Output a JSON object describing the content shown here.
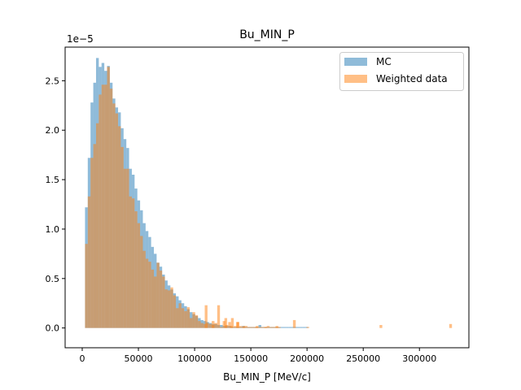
{
  "chart_data": {
    "type": "bar",
    "title": "Bu_MIN_P",
    "xlabel": "Bu_MIN_P [MeV/c]",
    "ylabel": "",
    "offset_label": "1e−5",
    "xlim": [
      -15200,
      344000
    ],
    "ylim": [
      -2e-06,
      2.84e-05
    ],
    "x_ticks": [
      0,
      50000,
      100000,
      150000,
      200000,
      250000,
      300000
    ],
    "x_tick_labels": [
      "0",
      "50000",
      "100000",
      "150000",
      "200000",
      "250000",
      "300000"
    ],
    "y_ticks": [
      0.0,
      5e-06,
      1e-05,
      1.5e-05,
      2e-05,
      2.5e-05
    ],
    "y_tick_labels": [
      "0.0",
      "0.5",
      "1.0",
      "1.5",
      "2.0",
      "2.5"
    ],
    "bin_start": 2500,
    "bin_width": 2450,
    "legend_position": "top-right",
    "grid": false,
    "series": [
      {
        "name": "MC",
        "color": "#1f77b4",
        "alpha": 0.5,
        "values": [
          1.22e-05,
          1.72e-05,
          2.28e-05,
          2.48e-05,
          2.73e-05,
          2.64e-05,
          2.68e-05,
          2.6e-05,
          2.65e-05,
          2.48e-05,
          2.32e-05,
          2.23e-05,
          2.18e-05,
          2.02e-05,
          1.91e-05,
          1.82e-05,
          1.61e-05,
          1.55e-05,
          1.41e-05,
          1.29e-05,
          1.19e-05,
          1.06e-05,
          9.8e-06,
          9.2e-06,
          8.2e-06,
          7.5e-06,
          6.6e-06,
          6.2e-06,
          5.4e-06,
          4.8e-06,
          4.3e-06,
          3.9e-06,
          3.5e-06,
          3.2e-06,
          2.8e-06,
          2.5e-06,
          2.2e-06,
          1.9e-06,
          1.6e-06,
          1.4e-06,
          1.2e-06,
          1e-06,
          8e-07,
          7e-07,
          6e-07,
          5e-07,
          4e-07,
          4e-07,
          3e-07,
          3e-07,
          2e-07,
          2e-07,
          2e-07,
          1e-07,
          1e-07,
          1e-07,
          1e-07,
          2e-07,
          1e-07,
          1e-07,
          1e-07,
          1e-07,
          1e-07,
          3e-07,
          1e-07,
          1e-07,
          1e-07,
          1e-07,
          1e-07,
          1e-07,
          1e-07,
          1e-07,
          1e-07,
          1e-07,
          1e-07,
          1e-07,
          1e-07,
          1e-07,
          1e-07,
          1e-07,
          1e-07
        ],
        "values_x": []
      },
      {
        "name": "Weighted data",
        "color": "#ff7f0e",
        "alpha": 0.5,
        "values": [
          8.5e-06,
          1.33e-05,
          1.72e-05,
          1.86e-05,
          2.07e-05,
          2.36e-05,
          2.46e-05,
          2.46e-05,
          2.64e-05,
          2.42e-05,
          2.27e-05,
          2.17e-05,
          2.04e-05,
          1.83e-05,
          1.61e-05,
          1.61e-05,
          1.33e-05,
          1.31e-05,
          1.18e-05,
          1.06e-05,
          9.3e-06,
          7.8e-06,
          7e-06,
          6.7e-06,
          5.9e-06,
          5.2e-06,
          6.6e-06,
          5.8e-06,
          5.2e-06,
          3.9e-06,
          3.8e-06,
          4.1e-06,
          3.3e-06,
          2e-06,
          2.5e-06,
          2e-06,
          1.7e-06,
          2.1e-06,
          1e-06,
          1.6e-06,
          1.3e-06,
          7e-07,
          5e-07,
          4e-07,
          5e-07,
          4e-07,
          3e-07,
          5e-07,
          2.3e-06,
          1e-07,
          7e-07,
          3e-07,
          6e-07,
          1e-06,
          2e-07,
          6e-07,
          2e-07,
          1e-07,
          2e-07,
          1e-07,
          1e-07,
          1e-07,
          2e-07,
          1e-07,
          1e-07,
          1e-07,
          2e-07,
          1e-07,
          1e-07,
          1e-07,
          1e-07
        ],
        "outliers": [
          {
            "x": 109000,
            "value": 2.3e-06
          },
          {
            "x": 115200,
            "value": 7e-07
          },
          {
            "x": 126500,
            "value": 1e-06
          },
          {
            "x": 131500,
            "value": 2e-07
          },
          {
            "x": 137000,
            "value": 6e-07
          },
          {
            "x": 142500,
            "value": 2e-07
          },
          {
            "x": 154000,
            "value": 1e-07
          },
          {
            "x": 162000,
            "value": 1e-07
          },
          {
            "x": 172000,
            "value": 2e-07
          },
          {
            "x": 187500,
            "value": 8e-07
          },
          {
            "x": 199500,
            "value": 1e-07
          },
          {
            "x": 264500,
            "value": 3e-07
          },
          {
            "x": 326500,
            "value": 4e-07
          }
        ]
      }
    ]
  }
}
